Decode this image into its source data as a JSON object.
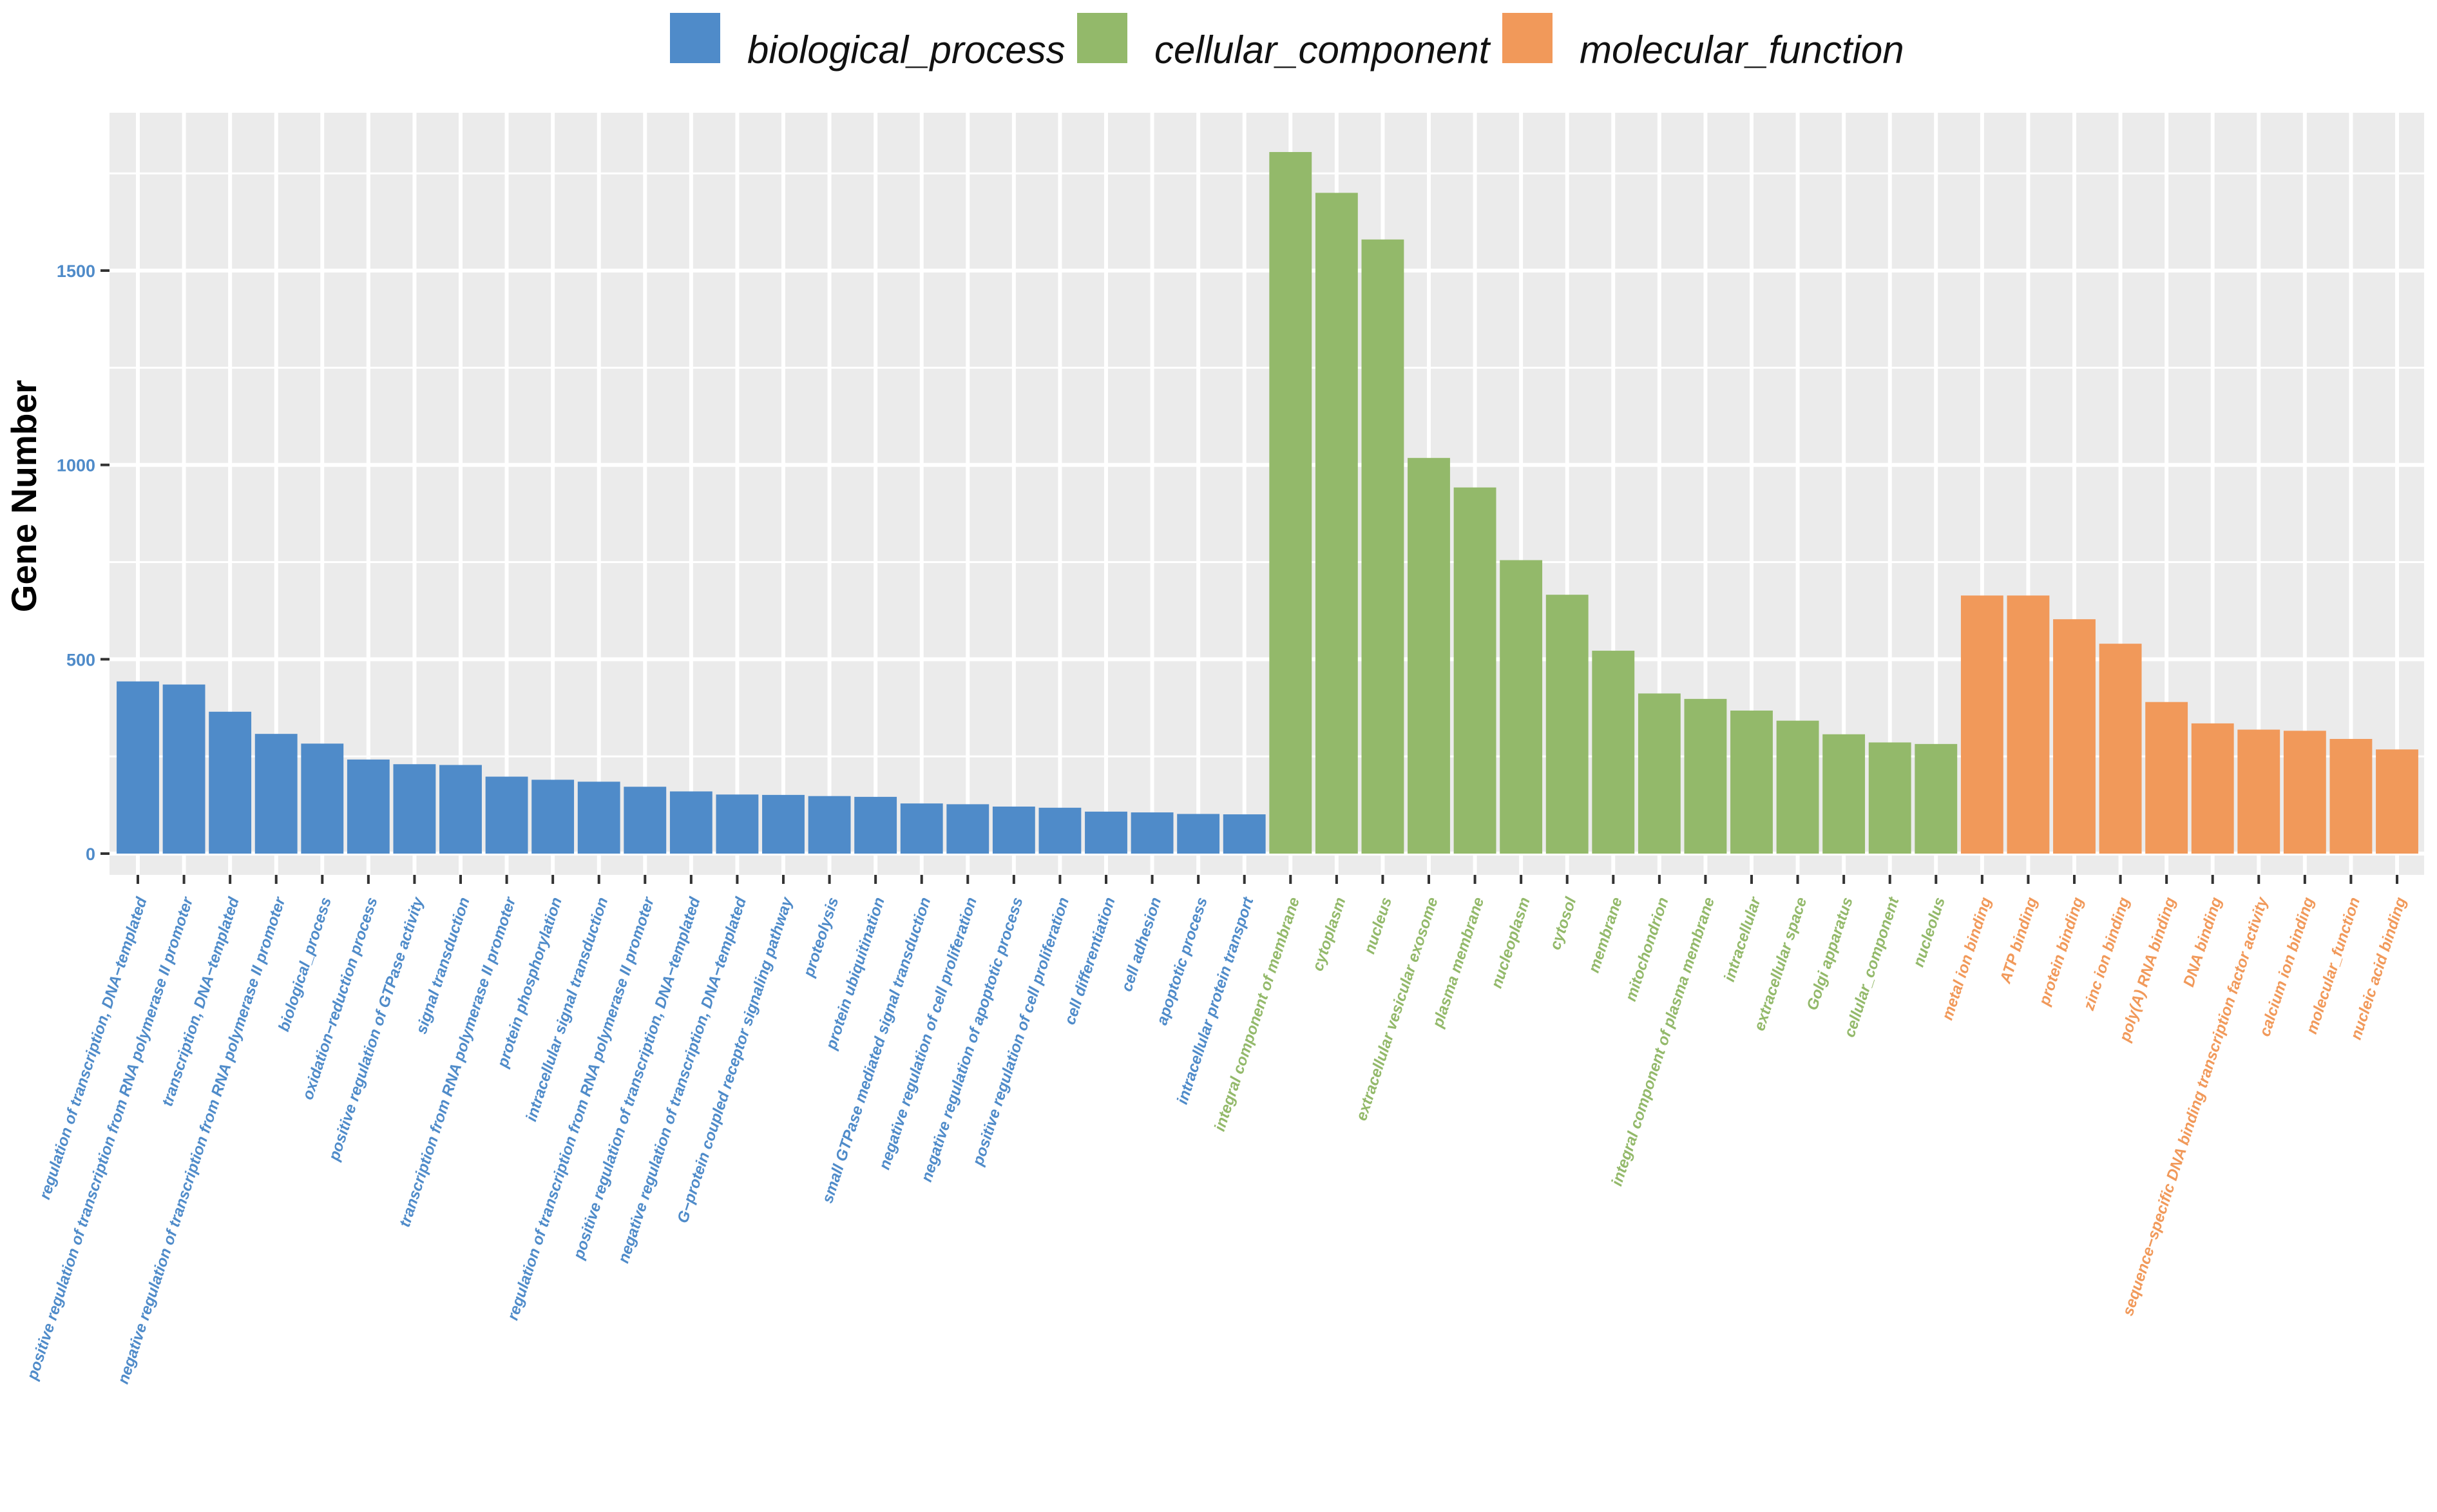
{
  "chart_data": {
    "type": "bar",
    "ylabel": "Gene Number",
    "ylim": [
      0,
      1900
    ],
    "yticks": [
      0,
      500,
      1000,
      1500
    ],
    "grid": true,
    "legend_position": "top",
    "colors": {
      "biological_process": "#4f8bc9",
      "cellular_component": "#93b96a",
      "molecular_function": "#f1995a",
      "panel_background": "#ebebeb",
      "grid": "#ffffff"
    },
    "legend": [
      {
        "name": "biological_process",
        "color": "#4f8bc9"
      },
      {
        "name": "cellular_component",
        "color": "#93b96a"
      },
      {
        "name": "molecular_function",
        "color": "#f1995a"
      }
    ],
    "categories": [
      {
        "label": "regulation of transcription, DNA−templated",
        "value": 443,
        "group": "biological_process"
      },
      {
        "label": "positive regulation of transcription from RNA polymerase II promoter",
        "value": 435,
        "group": "biological_process"
      },
      {
        "label": "transcription, DNA−templated",
        "value": 365,
        "group": "biological_process"
      },
      {
        "label": "negative regulation of transcription from RNA polymerase II promoter",
        "value": 308,
        "group": "biological_process"
      },
      {
        "label": "biological_process",
        "value": 283,
        "group": "biological_process"
      },
      {
        "label": "oxidation−reduction process",
        "value": 242,
        "group": "biological_process"
      },
      {
        "label": "positive regulation of GTPase activity",
        "value": 230,
        "group": "biological_process"
      },
      {
        "label": "signal transduction",
        "value": 228,
        "group": "biological_process"
      },
      {
        "label": "transcription from RNA polymerase II promoter",
        "value": 198,
        "group": "biological_process"
      },
      {
        "label": "protein phosphorylation",
        "value": 190,
        "group": "biological_process"
      },
      {
        "label": "intracellular signal transduction",
        "value": 185,
        "group": "biological_process"
      },
      {
        "label": "regulation of transcription from RNA polymerase II promoter",
        "value": 172,
        "group": "biological_process"
      },
      {
        "label": "positive regulation of transcription, DNA−templated",
        "value": 160,
        "group": "biological_process"
      },
      {
        "label": "negative regulation of transcription, DNA−templated",
        "value": 152,
        "group": "biological_process"
      },
      {
        "label": "G−protein coupled receptor signaling pathway",
        "value": 151,
        "group": "biological_process"
      },
      {
        "label": "proteolysis",
        "value": 148,
        "group": "biological_process"
      },
      {
        "label": "protein ubiquitination",
        "value": 146,
        "group": "biological_process"
      },
      {
        "label": "small GTPase mediated signal transduction",
        "value": 129,
        "group": "biological_process"
      },
      {
        "label": "negative regulation of cell proliferation",
        "value": 127,
        "group": "biological_process"
      },
      {
        "label": "negative regulation of apoptotic process",
        "value": 121,
        "group": "biological_process"
      },
      {
        "label": "positive regulation of cell proliferation",
        "value": 118,
        "group": "biological_process"
      },
      {
        "label": "cell differentiation",
        "value": 108,
        "group": "biological_process"
      },
      {
        "label": "cell adhesion",
        "value": 106,
        "group": "biological_process"
      },
      {
        "label": "apoptotic process",
        "value": 102,
        "group": "biological_process"
      },
      {
        "label": "intracellular protein transport",
        "value": 101,
        "group": "biological_process"
      },
      {
        "label": "integral component of membrane",
        "value": 1805,
        "group": "cellular_component"
      },
      {
        "label": "cytoplasm",
        "value": 1700,
        "group": "cellular_component"
      },
      {
        "label": "nucleus",
        "value": 1580,
        "group": "cellular_component"
      },
      {
        "label": "extracellular vesicular exosome",
        "value": 1018,
        "group": "cellular_component"
      },
      {
        "label": "plasma membrane",
        "value": 942,
        "group": "cellular_component"
      },
      {
        "label": "nucleoplasm",
        "value": 755,
        "group": "cellular_component"
      },
      {
        "label": "cytosol",
        "value": 666,
        "group": "cellular_component"
      },
      {
        "label": "membrane",
        "value": 522,
        "group": "cellular_component"
      },
      {
        "label": "mitochondrion",
        "value": 412,
        "group": "cellular_component"
      },
      {
        "label": "integral component of plasma membrane",
        "value": 398,
        "group": "cellular_component"
      },
      {
        "label": "intracellular",
        "value": 368,
        "group": "cellular_component"
      },
      {
        "label": "extracellular space",
        "value": 342,
        "group": "cellular_component"
      },
      {
        "label": "Golgi apparatus",
        "value": 307,
        "group": "cellular_component"
      },
      {
        "label": "cellular_component",
        "value": 286,
        "group": "cellular_component"
      },
      {
        "label": "nucleolus",
        "value": 282,
        "group": "cellular_component"
      },
      {
        "label": "metal ion binding",
        "value": 664,
        "group": "molecular_function"
      },
      {
        "label": "ATP binding",
        "value": 664,
        "group": "molecular_function"
      },
      {
        "label": "protein binding",
        "value": 603,
        "group": "molecular_function"
      },
      {
        "label": "zinc ion binding",
        "value": 540,
        "group": "molecular_function"
      },
      {
        "label": "poly(A) RNA binding",
        "value": 390,
        "group": "molecular_function"
      },
      {
        "label": "DNA binding",
        "value": 335,
        "group": "molecular_function"
      },
      {
        "label": "sequence−specific DNA binding transcription factor activity",
        "value": 319,
        "group": "molecular_function"
      },
      {
        "label": "calcium ion binding",
        "value": 316,
        "group": "molecular_function"
      },
      {
        "label": "molecular_function",
        "value": 295,
        "group": "molecular_function"
      },
      {
        "label": "nucleic acid binding",
        "value": 268,
        "group": "molecular_function"
      }
    ]
  }
}
